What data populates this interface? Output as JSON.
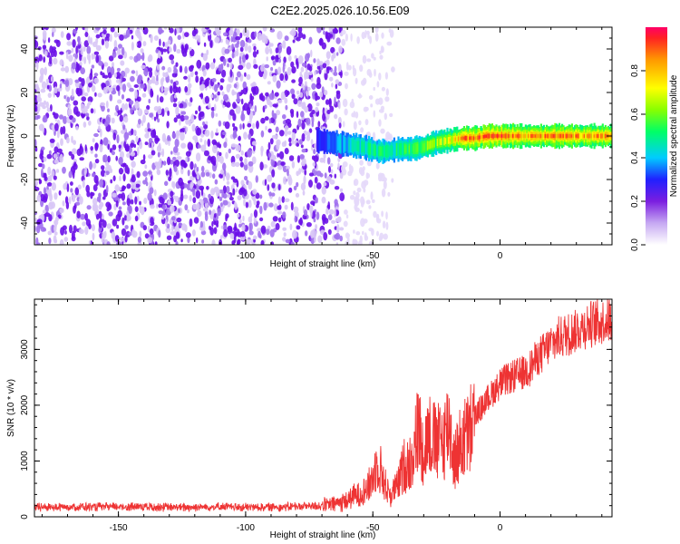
{
  "title": "C2E2.2025.026.10.56.E09",
  "chart_data": [
    {
      "type": "heatmap",
      "xlabel": "Height of straight line (km)",
      "ylabel": "Frequency (Hz)",
      "xlim": [
        -183,
        44
      ],
      "ylim": [
        -50,
        50
      ],
      "xticks": [
        -150,
        -100,
        -50,
        0
      ],
      "yticks": [
        -40,
        -20,
        0,
        20,
        40
      ],
      "colorbar": {
        "label": "Normalized spectral amplitude",
        "range": [
          0,
          1
        ],
        "ticks": [
          "0.0",
          "0.2",
          "0.4",
          "0.6",
          "0.8"
        ],
        "tick_values": [
          0,
          0.2,
          0.4,
          0.6,
          0.8
        ]
      },
      "noise_region": {
        "x_range": [
          -183,
          -62
        ],
        "freq_range": [
          -50,
          50
        ],
        "amplitude_range": [
          0.05,
          0.25
        ]
      },
      "signal_track": {
        "x": [
          -72,
          -66,
          -60,
          -54,
          -48,
          -44,
          -40,
          -35,
          -30,
          -25,
          -20,
          -15,
          -10,
          -5,
          0,
          5,
          10,
          15,
          20,
          25,
          30,
          35,
          40,
          44
        ],
        "freq_hz": [
          -2,
          -3,
          -4,
          -5,
          -7,
          -7,
          -6,
          -6,
          -5,
          -3,
          -2,
          -1,
          -1,
          0,
          0,
          0,
          0,
          0,
          0,
          0,
          0,
          0,
          0,
          0
        ],
        "amplitude": [
          0.3,
          0.35,
          0.4,
          0.45,
          0.5,
          0.45,
          0.5,
          0.55,
          0.6,
          0.6,
          0.7,
          0.85,
          0.95,
          0.9,
          1.0,
          0.9,
          0.85,
          0.8,
          0.95,
          0.9,
          0.85,
          0.85,
          0.85,
          0.8
        ]
      }
    },
    {
      "type": "line",
      "xlabel": "Height of straight line (km)",
      "ylabel": "SNR (10 * v/v)",
      "xlim": [
        -183,
        44
      ],
      "ylim": [
        0,
        3900
      ],
      "xticks": [
        -150,
        -100,
        -50,
        0
      ],
      "yticks": [
        0,
        1000,
        2000,
        3000
      ],
      "color": "#ee3333",
      "series": [
        {
          "x": [
            -183,
            -170,
            -160,
            -150,
            -140,
            -130,
            -120,
            -110,
            -100,
            -90,
            -80,
            -70,
            -65,
            -60,
            -55,
            -52,
            -50,
            -48,
            -45,
            -43,
            -40,
            -38,
            -35,
            -32,
            -30,
            -28,
            -25,
            -22,
            -20,
            -18,
            -15,
            -12,
            -10,
            -5,
            0,
            5,
            10,
            15,
            20,
            25,
            30,
            35,
            40,
            44
          ],
          "y": [
            170,
            180,
            175,
            180,
            185,
            170,
            175,
            180,
            170,
            175,
            185,
            200,
            230,
            300,
            420,
            520,
            700,
            1000,
            550,
            380,
            600,
            900,
            1000,
            1600,
            1200,
            1500,
            1300,
            1400,
            1700,
            1000,
            1350,
            1500,
            1800,
            2100,
            2400,
            2500,
            2600,
            2850,
            3100,
            3250,
            3350,
            3450,
            3500,
            3550
          ]
        }
      ]
    }
  ]
}
